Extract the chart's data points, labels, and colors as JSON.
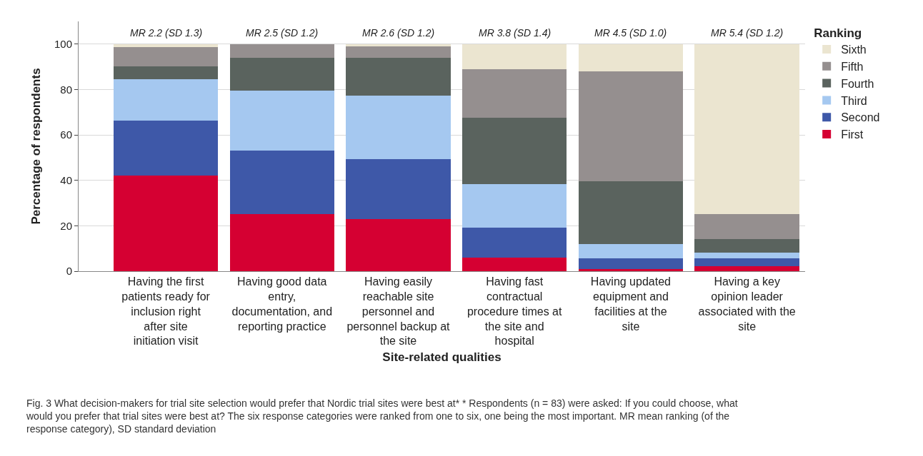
{
  "chart_data": {
    "type": "bar",
    "stacked": true,
    "categories": [
      "Having the first patients ready for inclusion right after site initiation visit",
      "Having good data entry, documentation, and reporting practice",
      "Having easily reachable site personnel and personnel backup at the site",
      "Having fast contractual procedure times at the site and hospital",
      "Having updated equipment and facilities at the site",
      "Having a key opinion leader associated with the site"
    ],
    "series": [
      {
        "name": "First",
        "color": "#d50032",
        "values": [
          42.1,
          25.3,
          22.8,
          5.9,
          1.1,
          2.3
        ]
      },
      {
        "name": "Second",
        "color": "#3e58a8",
        "values": [
          24.1,
          27.7,
          26.5,
          13.3,
          4.7,
          3.5
        ]
      },
      {
        "name": "Third",
        "color": "#a5c8f0",
        "values": [
          18.2,
          26.5,
          27.9,
          19.3,
          6.3,
          2.5
        ]
      },
      {
        "name": "Fourth",
        "color": "#5a635e",
        "values": [
          5.8,
          14.5,
          16.9,
          29.0,
          27.6,
          6.0
        ]
      },
      {
        "name": "Fifth",
        "color": "#958f8f",
        "values": [
          8.6,
          6.0,
          4.8,
          21.6,
          48.3,
          10.9
        ]
      },
      {
        "name": "Sixth",
        "color": "#ebe5d0",
        "values": [
          1.2,
          0,
          1.1,
          10.9,
          12.0,
          74.8
        ]
      }
    ],
    "xlabel": "Site-related qualities",
    "ylabel": "Percentage of respondents",
    "legend_title": "Ranking",
    "ylim": [
      0,
      110
    ],
    "yticks": [
      0,
      20,
      40,
      60,
      80,
      100
    ],
    "grid": "y",
    "legend": "right",
    "annotations": [
      {
        "text": "MR 2.2 (SD 1.3)",
        "x": "Having the first patients ready for inclusion right after site initiation visit",
        "y": 100
      },
      {
        "text": "MR 2.5 (SD 1.2)",
        "x": "Having good data entry, documentation, and reporting practice",
        "y": 100
      },
      {
        "text": "MR 2.6 (SD 1.2)",
        "x": "Having easily reachable site personnel and personnel backup at the site",
        "y": 100
      },
      {
        "text": "MR 3.8 (SD 1.4)",
        "x": "Having fast contractual procedure times at the site and hospital",
        "y": 100
      },
      {
        "text": "MR 4.5 (SD 1.0)",
        "x": "Having updated equipment and facilities at the site",
        "y": 100
      },
      {
        "text": "MR 5.4 (SD 1.2)",
        "x": "Having a key opinion leader associated with the site",
        "y": 100
      },
      "Fig. 3 What decision-makers for trial site selection would prefer that Nordic trial sites were best at* * Respondents (n = 83) were asked: If you could choose, what would you prefer that trial sites were best at? The six response categories were ranked from one to six, one being the most important. MR mean ranking (of the response category), SD standard deviation"
    ]
  }
}
